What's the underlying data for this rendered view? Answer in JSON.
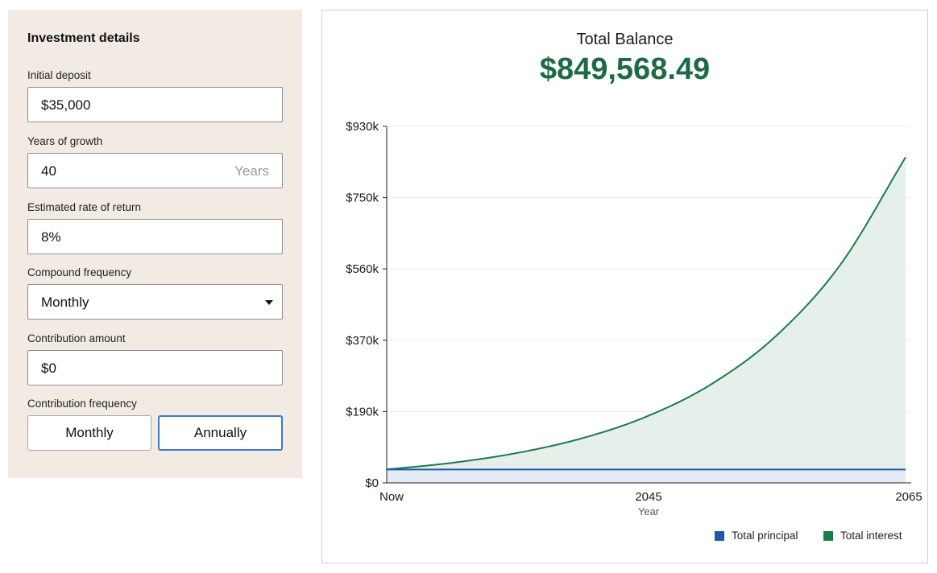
{
  "form": {
    "title": "Investment details",
    "initial_deposit": {
      "label": "Initial deposit",
      "value": "$35,000"
    },
    "years_of_growth": {
      "label": "Years of growth",
      "value": "40",
      "suffix": "Years"
    },
    "rate_of_return": {
      "label": "Estimated rate of return",
      "value": "8%"
    },
    "compound_frequency": {
      "label": "Compound frequency",
      "selected": "Monthly"
    },
    "contribution_amount": {
      "label": "Contribution amount",
      "value": "$0"
    },
    "contribution_frequency": {
      "label": "Contribution frequency",
      "options": [
        "Monthly",
        "Annually"
      ],
      "selected": "Annually"
    }
  },
  "summary": {
    "label": "Total Balance",
    "value": "$849,568.49"
  },
  "colors": {
    "accent_green": "#1d6b45",
    "principal_blue": "#1f5aa8",
    "interest_green": "#1c7a4e",
    "panel_bg": "#f1ebe4",
    "active_border": "#3b78c4"
  },
  "chart_data": {
    "type": "area",
    "xlabel": "Year",
    "ylabel": "",
    "x_ticks": [
      "Now",
      "2045",
      "2065"
    ],
    "y_ticks": [
      "$0",
      "$190k",
      "$370k",
      "$560k",
      "$750k",
      "$930k"
    ],
    "ylim": [
      0,
      930000
    ],
    "xlim": [
      0,
      40
    ],
    "grid": true,
    "legend_position": "bottom-right",
    "series": [
      {
        "name": "Total principal",
        "x": [
          0,
          40
        ],
        "values": [
          35000,
          35000
        ]
      },
      {
        "name": "Total interest",
        "x": [
          0,
          5,
          10,
          15,
          20,
          25,
          30,
          35,
          40
        ],
        "values": [
          35000,
          52150,
          77700,
          115800,
          172500,
          257000,
          382900,
          570400,
          849568
        ]
      }
    ]
  }
}
